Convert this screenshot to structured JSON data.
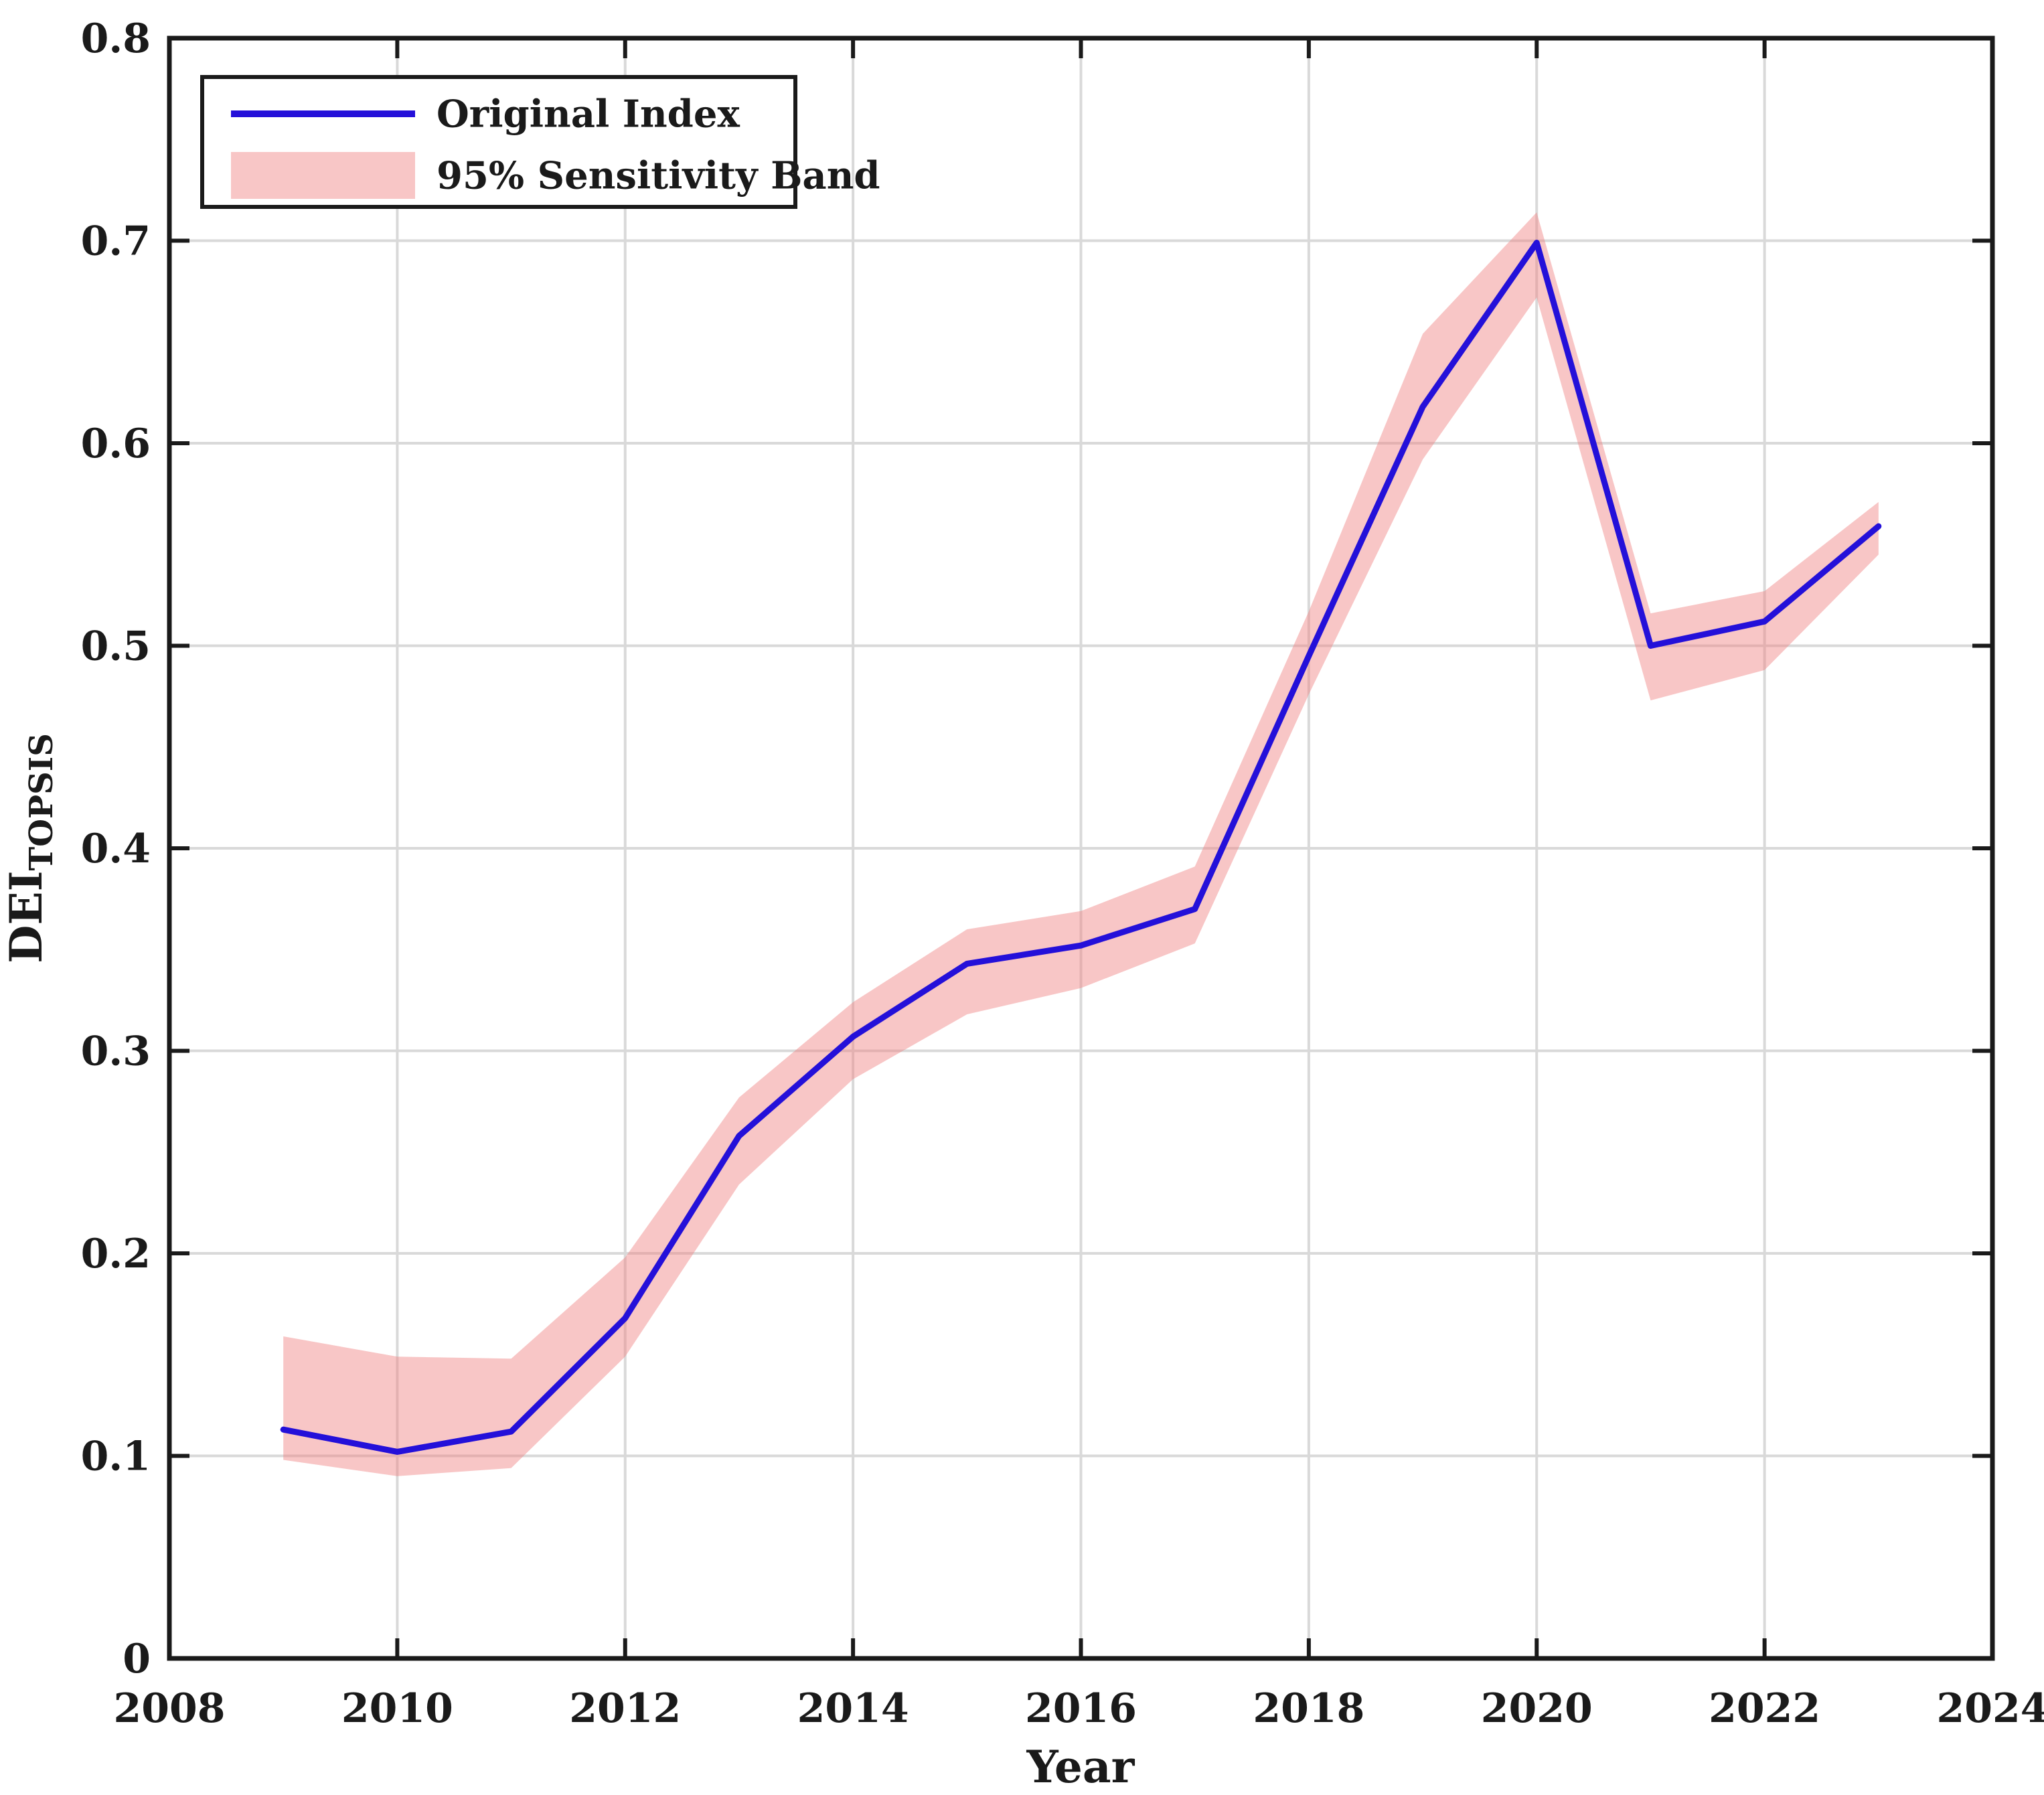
{
  "figure": {
    "background": "#ffffff",
    "axis_color": "#1a1a1a",
    "grid_color": "#d9d9d9",
    "plot_border": "#1a1a1a"
  },
  "chart_data": {
    "type": "line",
    "title": "",
    "xlabel": "Year",
    "ylabel": "DEI",
    "ylabel_subscript": "TOPSIS",
    "xlim": [
      2008,
      2024
    ],
    "ylim": [
      0,
      0.8
    ],
    "grid": true,
    "legend_position": "top-left",
    "x": [
      2009,
      2010,
      2011,
      2012,
      2013,
      2014,
      2015,
      2016,
      2017,
      2018,
      2019,
      2020,
      2021,
      2022,
      2023
    ],
    "series": [
      {
        "name": "Original Index",
        "type": "line",
        "color": "#2410d9",
        "values": [
          0.113,
          0.102,
          0.112,
          0.168,
          0.258,
          0.307,
          0.343,
          0.352,
          0.37,
          0.495,
          0.618,
          0.699,
          0.5,
          0.512,
          0.559
        ]
      },
      {
        "name": "95% Sensitivity Band",
        "type": "band",
        "color": "#f08080",
        "fill_opacity": 0.45,
        "lower": [
          0.098,
          0.09,
          0.094,
          0.149,
          0.234,
          0.286,
          0.318,
          0.331,
          0.353,
          0.476,
          0.592,
          0.672,
          0.473,
          0.488,
          0.545
        ],
        "upper": [
          0.159,
          0.149,
          0.148,
          0.198,
          0.277,
          0.324,
          0.36,
          0.369,
          0.391,
          0.517,
          0.654,
          0.714,
          0.516,
          0.527,
          0.571
        ]
      }
    ],
    "xticks": [
      {
        "value": 2008,
        "label": "2008"
      },
      {
        "value": 2010,
        "label": "2010"
      },
      {
        "value": 2012,
        "label": "2012"
      },
      {
        "value": 2014,
        "label": "2014"
      },
      {
        "value": 2016,
        "label": "2016"
      },
      {
        "value": 2018,
        "label": "2018"
      },
      {
        "value": 2020,
        "label": "2020"
      },
      {
        "value": 2022,
        "label": "2022"
      },
      {
        "value": 2024,
        "label": "2024"
      }
    ],
    "yticks": [
      {
        "value": 0.0,
        "label": "0"
      },
      {
        "value": 0.1,
        "label": "0.1"
      },
      {
        "value": 0.2,
        "label": "0.2"
      },
      {
        "value": 0.3,
        "label": "0.3"
      },
      {
        "value": 0.4,
        "label": "0.4"
      },
      {
        "value": 0.5,
        "label": "0.5"
      },
      {
        "value": 0.6,
        "label": "0.6"
      },
      {
        "value": 0.7,
        "label": "0.7"
      },
      {
        "value": 0.8,
        "label": "0.8"
      }
    ]
  }
}
